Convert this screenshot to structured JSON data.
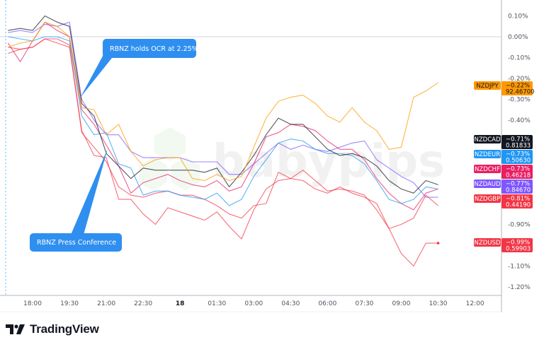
{
  "chart_data": {
    "type": "line",
    "title": "",
    "xlabel": "",
    "ylabel": "",
    "y_unit": "%",
    "ylim": [
      -1.35,
      0.18
    ],
    "grid": false,
    "zero_line": true,
    "y_ticks": [
      "0.10%",
      "0.00%",
      "-0.10%",
      "-0.20%",
      "-0.30%",
      "-0.40%",
      "-0.90%",
      "-1.10%",
      "-1.20%"
    ],
    "y_tick_values": [
      0.1,
      0.0,
      -0.1,
      -0.2,
      -0.3,
      -0.4,
      -0.9,
      -1.1,
      -1.2
    ],
    "x_ticks": [
      {
        "label": "18:00",
        "time": "18:00",
        "bold": false
      },
      {
        "label": "19:30",
        "time": "19:30",
        "bold": false
      },
      {
        "label": "21:00",
        "time": "21:00",
        "bold": false
      },
      {
        "label": "22:30",
        "time": "22:30",
        "bold": false
      },
      {
        "label": "18",
        "time": "00:00",
        "bold": true
      },
      {
        "label": "01:30",
        "time": "01:30",
        "bold": false
      },
      {
        "label": "03:00",
        "time": "03:00",
        "bold": false
      },
      {
        "label": "04:30",
        "time": "04:30",
        "bold": false
      },
      {
        "label": "06:00",
        "time": "06:00",
        "bold": false
      },
      {
        "label": "07:30",
        "time": "07:30",
        "bold": false
      },
      {
        "label": "09:00",
        "time": "09:00",
        "bold": false
      },
      {
        "label": "10:30",
        "time": "10:30",
        "bold": false
      },
      {
        "label": "12:00",
        "time": "12:00",
        "bold": false
      }
    ],
    "x": [
      "17:00",
      "17:30",
      "18:00",
      "18:30",
      "19:00",
      "19:30",
      "20:00",
      "20:30",
      "21:00",
      "21:30",
      "22:00",
      "22:30",
      "23:00",
      "23:30",
      "00:00",
      "00:30",
      "01:00",
      "01:30",
      "02:00",
      "02:30",
      "03:00",
      "03:30",
      "04:00",
      "04:30",
      "05:00",
      "05:30",
      "06:00",
      "06:30",
      "07:00",
      "07:30",
      "08:00",
      "08:30",
      "09:00",
      "09:30",
      "10:00",
      "10:30"
    ],
    "series": [
      {
        "name": "NZDJPY",
        "last_pct": "−0.22%",
        "last_price": "92.46700",
        "color": "#ff9800",
        "values": [
          -0.05,
          -0.03,
          -0.02,
          0.07,
          0.05,
          0.0,
          -0.34,
          -0.35,
          -0.47,
          -0.42,
          -0.55,
          -0.62,
          -0.59,
          -0.58,
          -0.58,
          -0.68,
          -0.69,
          -0.66,
          -0.69,
          -0.67,
          -0.53,
          -0.39,
          -0.31,
          -0.29,
          -0.28,
          -0.32,
          -0.38,
          -0.41,
          -0.34,
          -0.41,
          -0.45,
          -0.54,
          -0.53,
          -0.29,
          -0.26,
          -0.22
        ]
      },
      {
        "name": "NZDCAD",
        "last_pct": "−0.71%",
        "last_price": "0.81833",
        "color": "#131722",
        "values": [
          0.03,
          0.04,
          0.03,
          0.1,
          0.07,
          0.05,
          -0.32,
          -0.38,
          -0.56,
          -0.62,
          -0.68,
          -0.63,
          -0.64,
          -0.64,
          -0.64,
          -0.64,
          -0.65,
          -0.63,
          -0.72,
          -0.65,
          -0.57,
          -0.47,
          -0.39,
          -0.42,
          -0.42,
          -0.48,
          -0.54,
          -0.57,
          -0.56,
          -0.58,
          -0.62,
          -0.69,
          -0.73,
          -0.75,
          -0.69,
          -0.71
        ]
      },
      {
        "name": "NZDEUR",
        "last_pct": "−0.73%",
        "last_price": "0.50630",
        "color": "#2196f3",
        "values": [
          0.0,
          -0.01,
          -0.02,
          0.0,
          0.0,
          -0.02,
          -0.38,
          -0.47,
          -0.46,
          -0.61,
          -0.63,
          -0.76,
          -0.74,
          -0.74,
          -0.76,
          -0.77,
          -0.78,
          -0.75,
          -0.81,
          -0.78,
          -0.67,
          -0.59,
          -0.51,
          -0.49,
          -0.5,
          -0.54,
          -0.56,
          -0.56,
          -0.57,
          -0.61,
          -0.69,
          -0.78,
          -0.8,
          -0.78,
          -0.72,
          -0.73
        ]
      },
      {
        "name": "NZDCHF",
        "last_pct": "−0.73%",
        "last_price": "0.46218",
        "color": "#e91e63",
        "values": [
          -0.03,
          -0.12,
          -0.02,
          0.07,
          0.03,
          0.0,
          -0.35,
          -0.42,
          -0.52,
          -0.62,
          -0.75,
          -0.7,
          -0.68,
          -0.66,
          -0.69,
          -0.71,
          -0.72,
          -0.69,
          -0.74,
          -0.72,
          -0.61,
          -0.48,
          -0.46,
          -0.42,
          -0.43,
          -0.45,
          -0.5,
          -0.54,
          -0.54,
          -0.59,
          -0.68,
          -0.75,
          -0.8,
          -0.83,
          -0.75,
          -0.73
        ]
      },
      {
        "name": "NZDAUD",
        "last_pct": "−0.77%",
        "last_price": "0.84670",
        "color": "#7e57ff",
        "values": [
          0.02,
          0.03,
          0.02,
          0.06,
          0.05,
          0.07,
          -0.3,
          -0.4,
          -0.47,
          -0.47,
          -0.55,
          -0.58,
          -0.58,
          -0.58,
          -0.58,
          -0.6,
          -0.6,
          -0.6,
          -0.66,
          -0.66,
          -0.61,
          -0.56,
          -0.51,
          -0.54,
          -0.52,
          -0.54,
          -0.55,
          -0.53,
          -0.51,
          -0.5,
          -0.59,
          -0.63,
          -0.67,
          -0.7,
          -0.77,
          -0.77
        ]
      },
      {
        "name": "NZDGBP",
        "last_pct": "−0.81%",
        "last_price": "0.44190",
        "color": "#f23645",
        "values": [
          -0.05,
          -0.06,
          -0.05,
          -0.01,
          -0.03,
          -0.05,
          -0.46,
          -0.53,
          -0.6,
          -0.72,
          -0.76,
          -0.77,
          -0.75,
          -0.74,
          -0.76,
          -0.76,
          -0.78,
          -0.81,
          -0.85,
          -0.87,
          -0.81,
          -0.8,
          -0.65,
          -0.68,
          -0.64,
          -0.69,
          -0.74,
          -0.73,
          -0.74,
          -0.76,
          -0.83,
          -0.92,
          -0.9,
          -0.87,
          -0.76,
          -0.81
        ]
      },
      {
        "name": "NZDUSD",
        "last_pct": "−0.99%",
        "last_price": "0.59903",
        "color": "#f23645",
        "values": [
          -0.08,
          -0.06,
          -0.05,
          -0.01,
          -0.01,
          -0.04,
          -0.45,
          -0.57,
          -0.58,
          -0.78,
          -0.78,
          -0.85,
          -0.9,
          -0.82,
          -0.84,
          -0.86,
          -0.88,
          -0.84,
          -0.91,
          -0.97,
          -0.83,
          -0.73,
          -0.69,
          -0.68,
          -0.69,
          -0.73,
          -0.75,
          -0.72,
          -0.75,
          -0.77,
          -0.8,
          -0.92,
          -1.04,
          -1.1,
          -0.99,
          -0.99
        ]
      }
    ],
    "annotations": [
      {
        "text": "RBNZ holds OCR at 2.25%",
        "time": "20:00"
      },
      {
        "text": "RBNZ Press Conference",
        "time": "21:00"
      }
    ],
    "colors": {
      "callout": "#2f8ff0",
      "axis_text": "#50535e",
      "zero_line": "#d1d4dc"
    }
  },
  "watermark": "babypips",
  "branding": {
    "logo_text": "TradingView"
  }
}
